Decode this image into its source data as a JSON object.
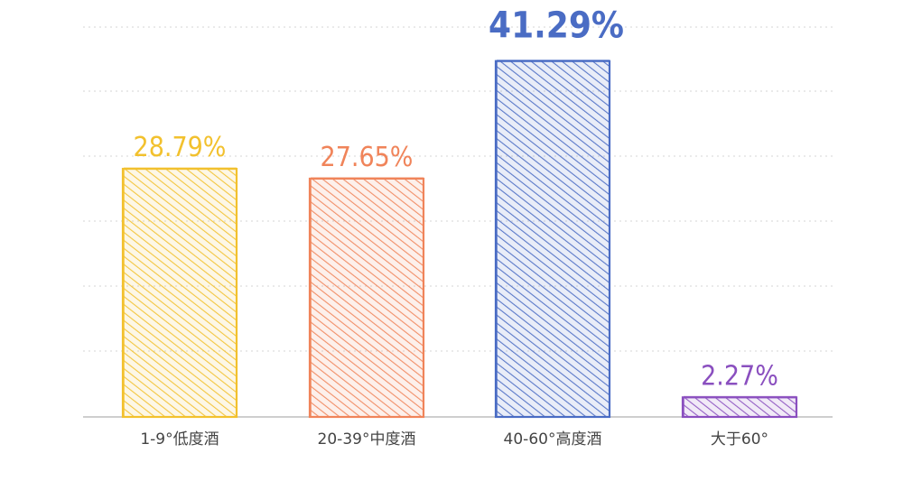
{
  "chart_data": {
    "type": "bar",
    "categories": [
      "1-9°低度酒",
      "20-39°中度酒",
      "40-60°高度酒",
      "大于60°"
    ],
    "values": [
      28.79,
      27.65,
      41.29,
      2.27
    ],
    "value_labels": [
      "28.79%",
      "27.65%",
      "41.29%",
      "2.27%"
    ],
    "colors": [
      "#f2c12e",
      "#f0845a",
      "#4a6cc4",
      "#8a4fbf"
    ],
    "ylim": [
      0,
      45
    ],
    "grid": true,
    "style": "hand-drawn hatched bars",
    "title": "",
    "xlabel": "",
    "ylabel": ""
  }
}
